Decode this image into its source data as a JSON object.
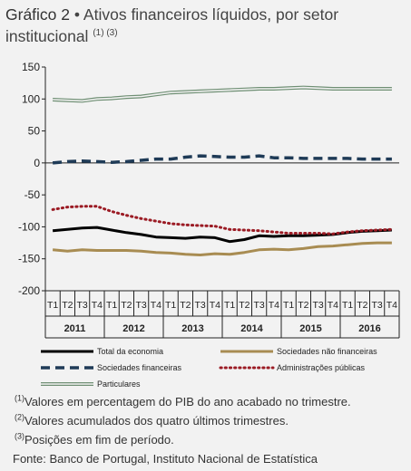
{
  "header": {
    "label": "Gráfico 2",
    "bullet": "•",
    "title": "Ativos financeiros líquidos, por setor institucional",
    "refs": "(1) (3)"
  },
  "chart_data": {
    "type": "line",
    "ylim": [
      -200,
      150
    ],
    "yticks": [
      150,
      100,
      50,
      0,
      -50,
      -100,
      -150,
      -200
    ],
    "x": [
      "2011 T1",
      "2011 T2",
      "2011 T3",
      "2011 T4",
      "2012 T1",
      "2012 T2",
      "2012 T3",
      "2012 T4",
      "2013 T1",
      "2013 T2",
      "2013 T3",
      "2013 T4",
      "2014 T1",
      "2014 T2",
      "2014 T3",
      "2014 T4",
      "2015 T1",
      "2015 T2",
      "2015 T3",
      "2015 T4",
      "2016 T1",
      "2016 T2",
      "2016 T3",
      "2016 T4"
    ],
    "quarter_labels": [
      "T1",
      "T2",
      "T3",
      "T4"
    ],
    "years": [
      "2011",
      "2012",
      "2013",
      "2014",
      "2015",
      "2016"
    ],
    "grid": false,
    "legend_position": "bottom",
    "series": [
      {
        "name": "Total da economia",
        "color": "#000000",
        "style": "solid",
        "values": [
          -106,
          -104,
          -102,
          -101,
          -105,
          -109,
          -112,
          -116,
          -117,
          -118,
          -116,
          -117,
          -123,
          -120,
          -114,
          -115,
          -114,
          -114,
          -113,
          -112,
          -109,
          -107,
          -106,
          -105
        ]
      },
      {
        "name": "Sociedades não financeiras",
        "color": "#a88c52",
        "style": "solid",
        "values": [
          -136,
          -138,
          -136,
          -137,
          -137,
          -137,
          -138,
          -140,
          -141,
          -143,
          -144,
          -142,
          -143,
          -140,
          -136,
          -135,
          -136,
          -134,
          -131,
          -130,
          -128,
          -126,
          -125,
          -125
        ]
      },
      {
        "name": "Sociedades financeiras",
        "color": "#1f3b57",
        "style": "dash",
        "values": [
          0,
          2,
          3,
          2,
          1,
          2,
          4,
          6,
          6,
          9,
          11,
          10,
          9,
          9,
          11,
          8,
          8,
          7,
          7,
          7,
          7,
          6,
          6,
          6
        ]
      },
      {
        "name": "Administrações públicas",
        "color": "#9b1b24",
        "style": "dot",
        "values": [
          -73,
          -69,
          -68,
          -68,
          -76,
          -82,
          -87,
          -91,
          -95,
          -97,
          -98,
          -99,
          -104,
          -105,
          -106,
          -108,
          -110,
          -110,
          -110,
          -111,
          -108,
          -106,
          -105,
          -104
        ]
      },
      {
        "name": "Particulares",
        "color": "#6f8f74",
        "style": "double",
        "values": [
          99,
          98,
          97,
          100,
          101,
          103,
          104,
          107,
          110,
          111,
          112,
          113,
          114,
          115,
          116,
          116,
          117,
          118,
          117,
          116,
          116,
          116,
          116,
          116
        ]
      }
    ]
  },
  "notes": {
    "n1_ref": "(1)",
    "n1_text": "Valores em percentagem do PIB do ano acabado no trimestre.",
    "n2_ref": "(2)",
    "n2_text": "Valores acumulados dos quatro últimos trimestres.",
    "n3_ref": "(3)",
    "n3_text": "Posições em fim de período.",
    "source": "Fonte: Banco de Portugal, Instituto Nacional de Estatística"
  }
}
